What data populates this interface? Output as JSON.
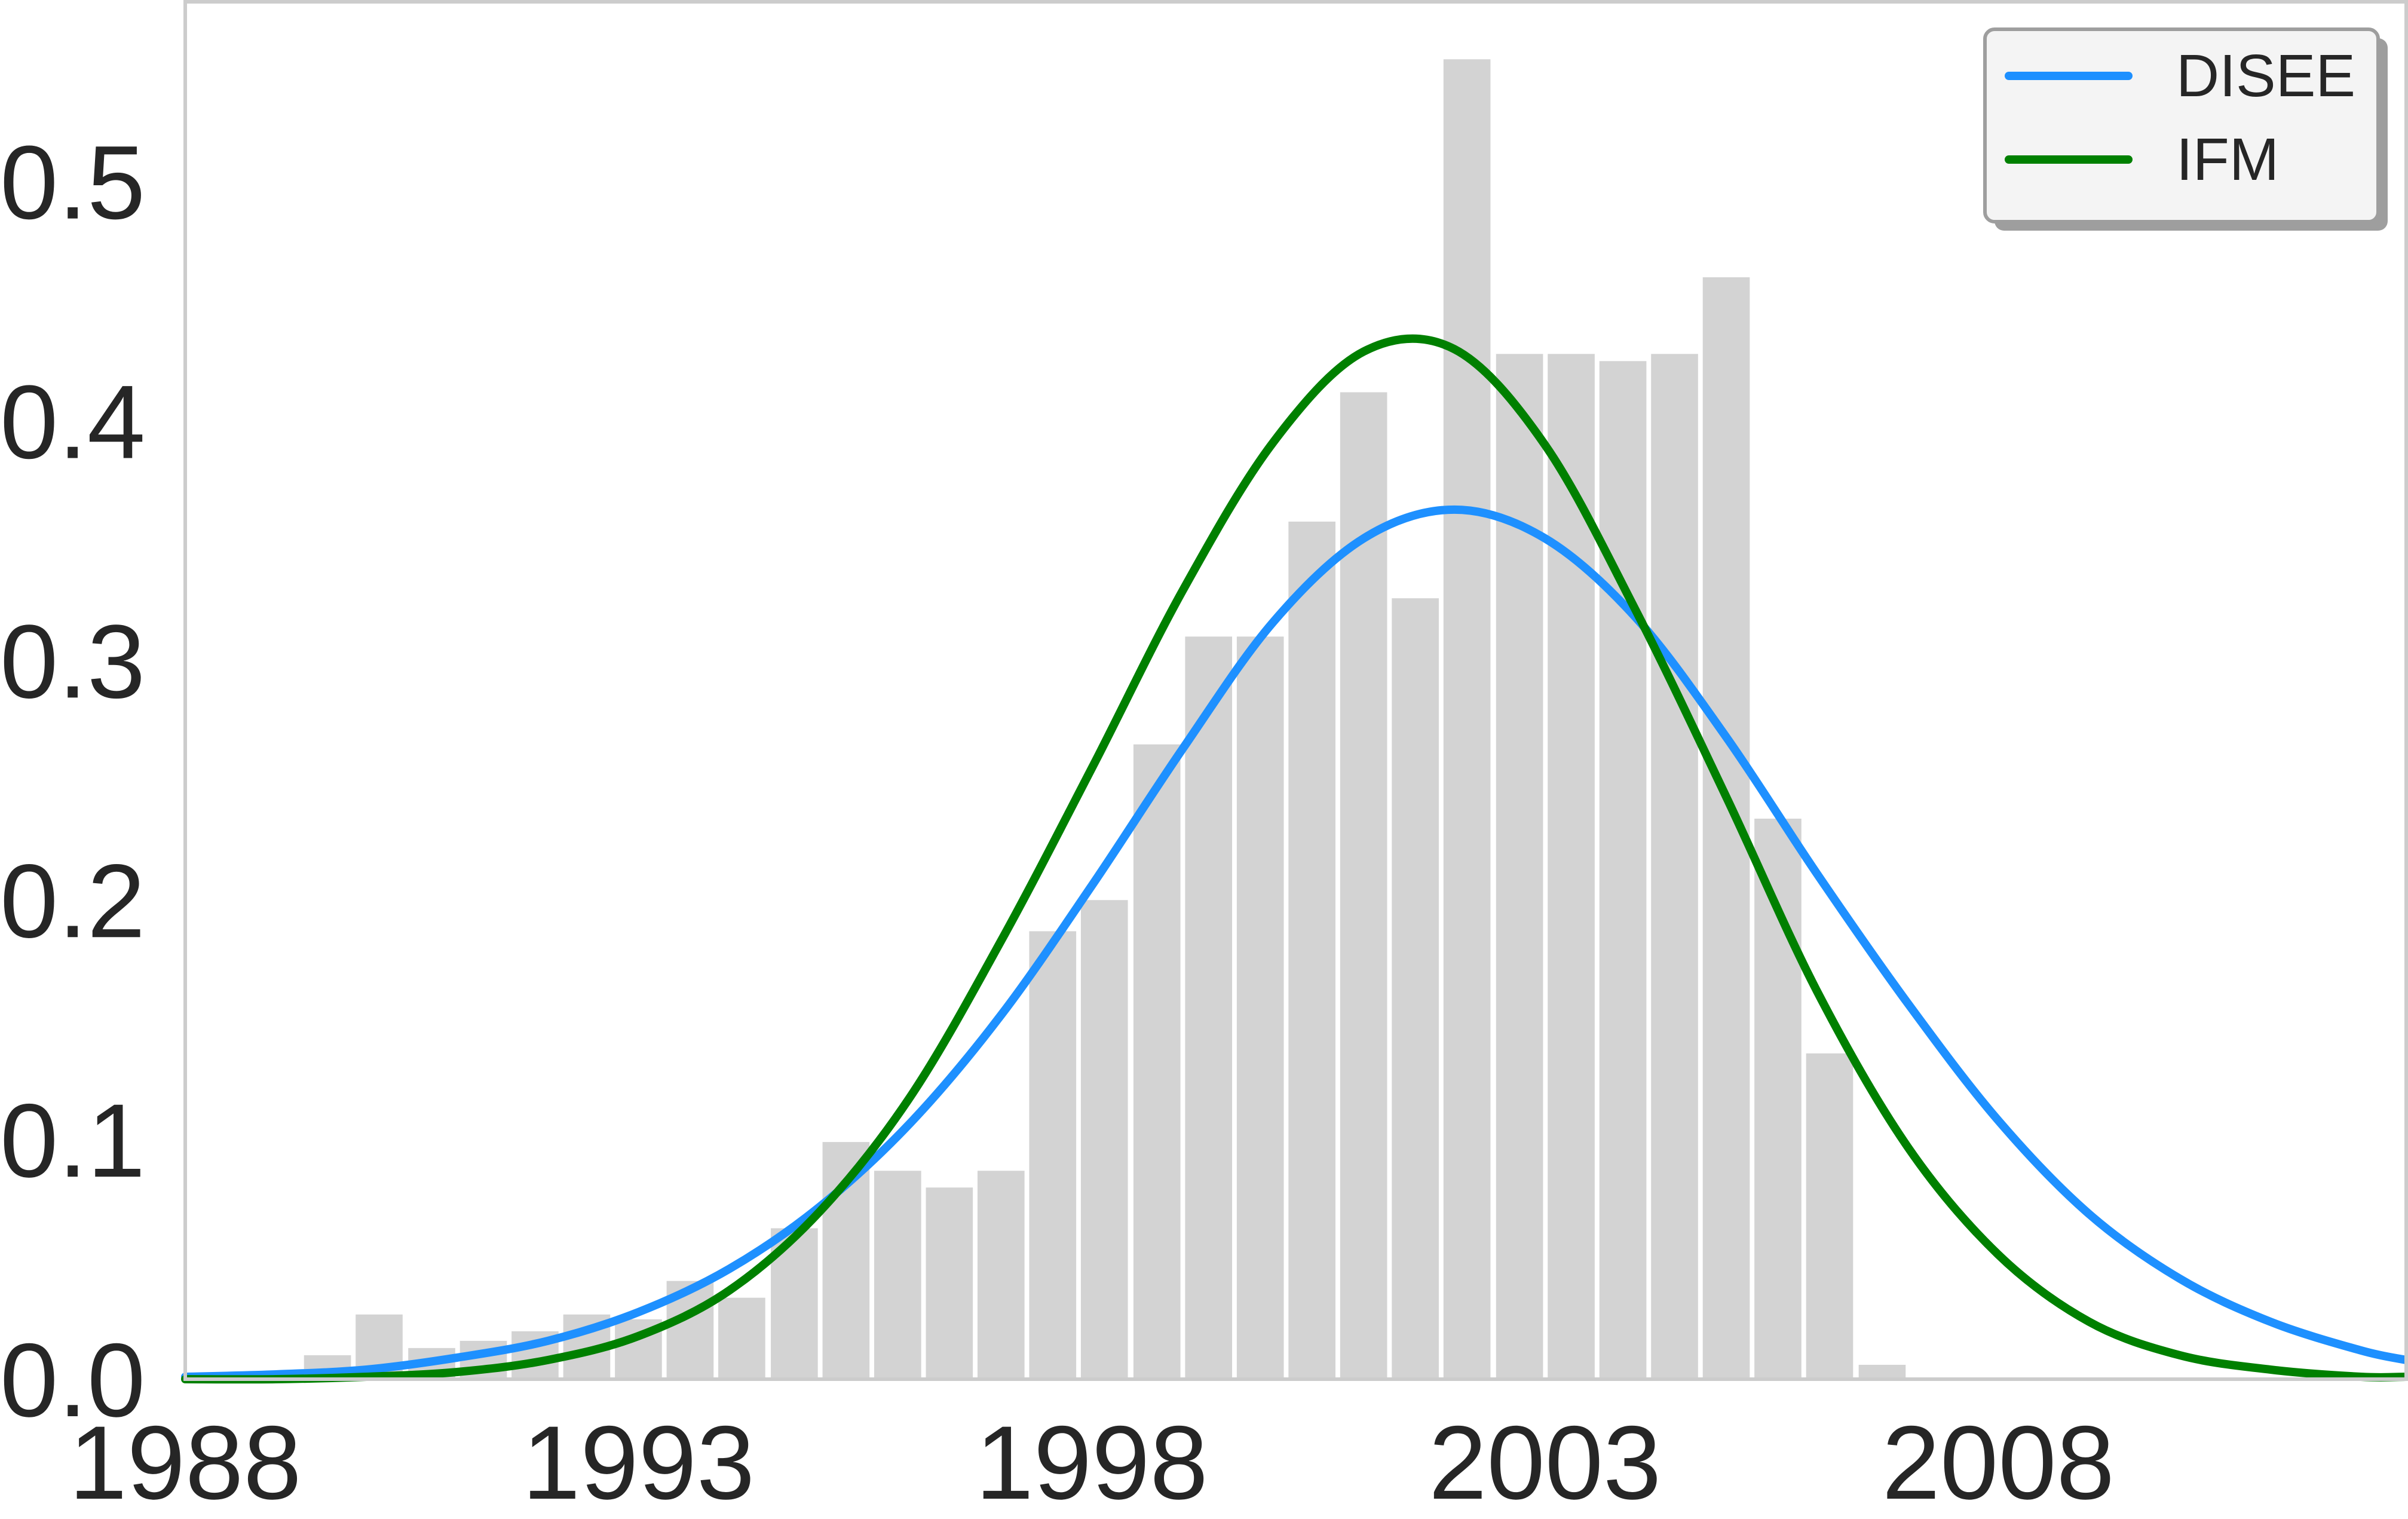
{
  "chart_data": {
    "type": "bar",
    "title": "",
    "xlabel": "",
    "ylabel": "",
    "xlim": [
      1988,
      2012.5
    ],
    "ylim": [
      0,
      0.575
    ],
    "grid": false,
    "legend_position": "top-right",
    "x_ticks": [
      1988,
      1993,
      1998,
      2003,
      2008
    ],
    "x_tick_labels": [
      "1988",
      "1993",
      "1998",
      "2003",
      "2008"
    ],
    "y_ticks": [
      0.0,
      0.1,
      0.2,
      0.3,
      0.4,
      0.5
    ],
    "y_tick_labels": [
      "0.0",
      "0.1",
      "0.2",
      "0.3",
      "0.4",
      "0.5"
    ],
    "histogram": {
      "color": "#d3d3d3",
      "bin_width": 0.571,
      "bin_starts": [
        1989.31,
        1989.88,
        1990.46,
        1991.03,
        1991.6,
        1992.17,
        1992.74,
        1993.31,
        1993.88,
        1994.46,
        1995.03,
        1995.6,
        1996.17,
        1996.74,
        1997.31,
        1997.88,
        1998.46,
        1999.03,
        1999.6,
        2000.17,
        2000.74,
        2001.31,
        2001.88,
        2002.46,
        2003.03,
        2003.6,
        2004.17,
        2004.74,
        2005.31,
        2005.88,
        2006.46
      ],
      "values": [
        0.01,
        0.027,
        0.013,
        0.016,
        0.02,
        0.027,
        0.025,
        0.041,
        0.034,
        0.063,
        0.099,
        0.087,
        0.08,
        0.087,
        0.187,
        0.2,
        0.265,
        0.31,
        0.31,
        0.358,
        0.412,
        0.326,
        0.551,
        0.428,
        0.428,
        0.425,
        0.428,
        0.46,
        0.234,
        0.136,
        0.006
      ]
    },
    "series": [
      {
        "name": "DISEE",
        "color": "#1e90ff",
        "x": [
          1988,
          1989,
          1990,
          1991,
          1992,
          1993,
          1994,
          1995,
          1996,
          1997,
          1998,
          1999,
          2000,
          2001,
          2002,
          2003,
          2004,
          2005,
          2006,
          2007,
          2008,
          2009,
          2010,
          2011,
          2012,
          2012.5
        ],
        "y": [
          0.001,
          0.002,
          0.004,
          0.009,
          0.016,
          0.028,
          0.046,
          0.072,
          0.107,
          0.152,
          0.206,
          0.263,
          0.316,
          0.351,
          0.363,
          0.351,
          0.318,
          0.268,
          0.211,
          0.157,
          0.108,
          0.069,
          0.042,
          0.024,
          0.012,
          0.008
        ]
      },
      {
        "name": "IFM",
        "color": "#008000",
        "x": [
          1988,
          1989,
          1990,
          1991,
          1992,
          1993,
          1994,
          1995,
          1996,
          1997,
          1998,
          1999,
          2000,
          2001,
          2002,
          2003,
          2004,
          2005,
          2006,
          2007,
          2008,
          2009,
          2010,
          2011,
          2012,
          2012.5
        ],
        "y": [
          0.0,
          0.0,
          0.001,
          0.003,
          0.008,
          0.018,
          0.037,
          0.07,
          0.118,
          0.183,
          0.255,
          0.329,
          0.391,
          0.429,
          0.43,
          0.39,
          0.321,
          0.243,
          0.162,
          0.097,
          0.052,
          0.024,
          0.01,
          0.004,
          0.001,
          0.001
        ]
      }
    ]
  }
}
